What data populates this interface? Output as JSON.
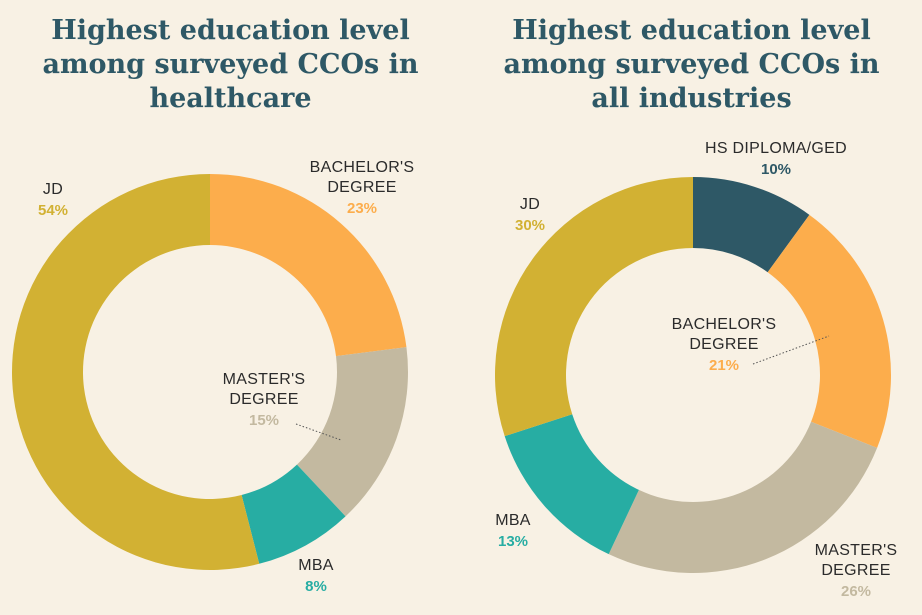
{
  "chart_data": [
    {
      "type": "pie",
      "title_lines": [
        "Highest education level",
        "among surveyed CCOs in",
        "healthcare"
      ],
      "slices": [
        {
          "name": "BACHELOR'S DEGREE",
          "label_lines": [
            "BACHELOR'S",
            "DEGREE"
          ],
          "value": 23,
          "value_label": "23%",
          "color": "#fcad4c"
        },
        {
          "name": "MASTER'S DEGREE",
          "label_lines": [
            "MASTER'S",
            "DEGREE"
          ],
          "value": 15,
          "value_label": "15%",
          "color": "#c3b9a0"
        },
        {
          "name": "MBA",
          "label_lines": [
            "MBA"
          ],
          "value": 8,
          "value_label": "8%",
          "color": "#27ada3"
        },
        {
          "name": "JD",
          "label_lines": [
            "JD"
          ],
          "value": 54,
          "value_label": "54%",
          "color": "#d2b133"
        }
      ]
    },
    {
      "type": "pie",
      "title_lines": [
        "Highest education level",
        "among surveyed CCOs in",
        "all industries"
      ],
      "slices": [
        {
          "name": "HS DIPLOMA/GED",
          "label_lines": [
            "HS DIPLOMA/GED"
          ],
          "value": 10,
          "value_label": "10%",
          "color": "#2e5866"
        },
        {
          "name": "BACHELOR'S DEGREE",
          "label_lines": [
            "BACHELOR'S",
            "DEGREE"
          ],
          "value": 21,
          "value_label": "21%",
          "color": "#fcad4c"
        },
        {
          "name": "MASTER'S DEGREE",
          "label_lines": [
            "MASTER'S",
            "DEGREE"
          ],
          "value": 26,
          "value_label": "26%",
          "color": "#c3b9a0"
        },
        {
          "name": "MBA",
          "label_lines": [
            "MBA"
          ],
          "value": 13,
          "value_label": "13%",
          "color": "#27ada3"
        },
        {
          "name": "JD",
          "label_lines": [
            "JD"
          ],
          "value": 30,
          "value_label": "30%",
          "color": "#d2b133"
        }
      ]
    }
  ]
}
